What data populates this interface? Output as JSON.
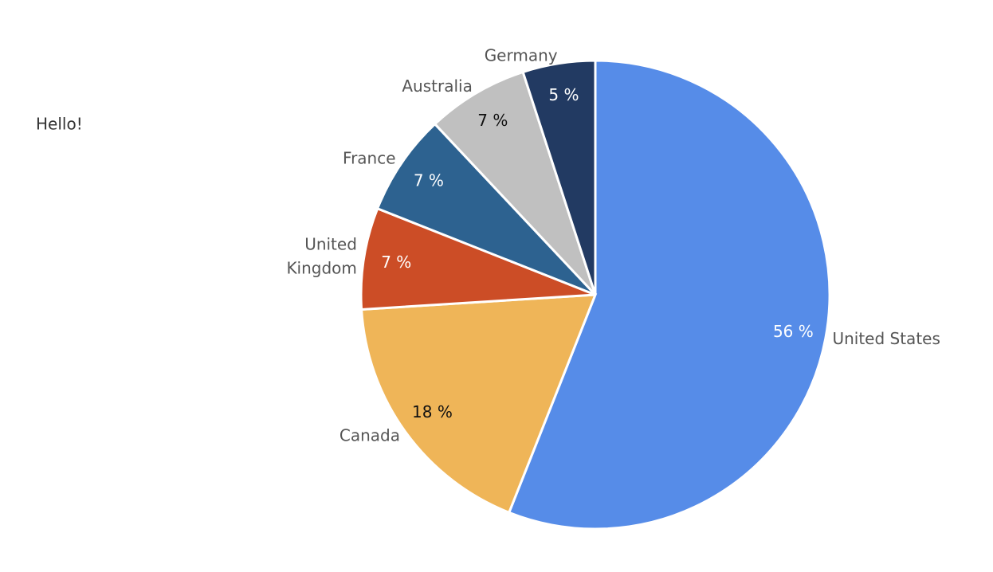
{
  "chart_data": {
    "type": "pie",
    "annotation": "Hello!",
    "categories": [
      "United States",
      "Canada",
      "United Kingdom",
      "France",
      "Australia",
      "Germany"
    ],
    "values": [
      56,
      18,
      7,
      7,
      7,
      5
    ],
    "value_labels": [
      "56 %",
      "18 %",
      "7 %",
      "7 %",
      "7 %",
      "5 %"
    ],
    "colors": [
      "#568ce8",
      "#efb558",
      "#cc4d26",
      "#2d6290",
      "#c0c0c0",
      "#223a62"
    ]
  }
}
